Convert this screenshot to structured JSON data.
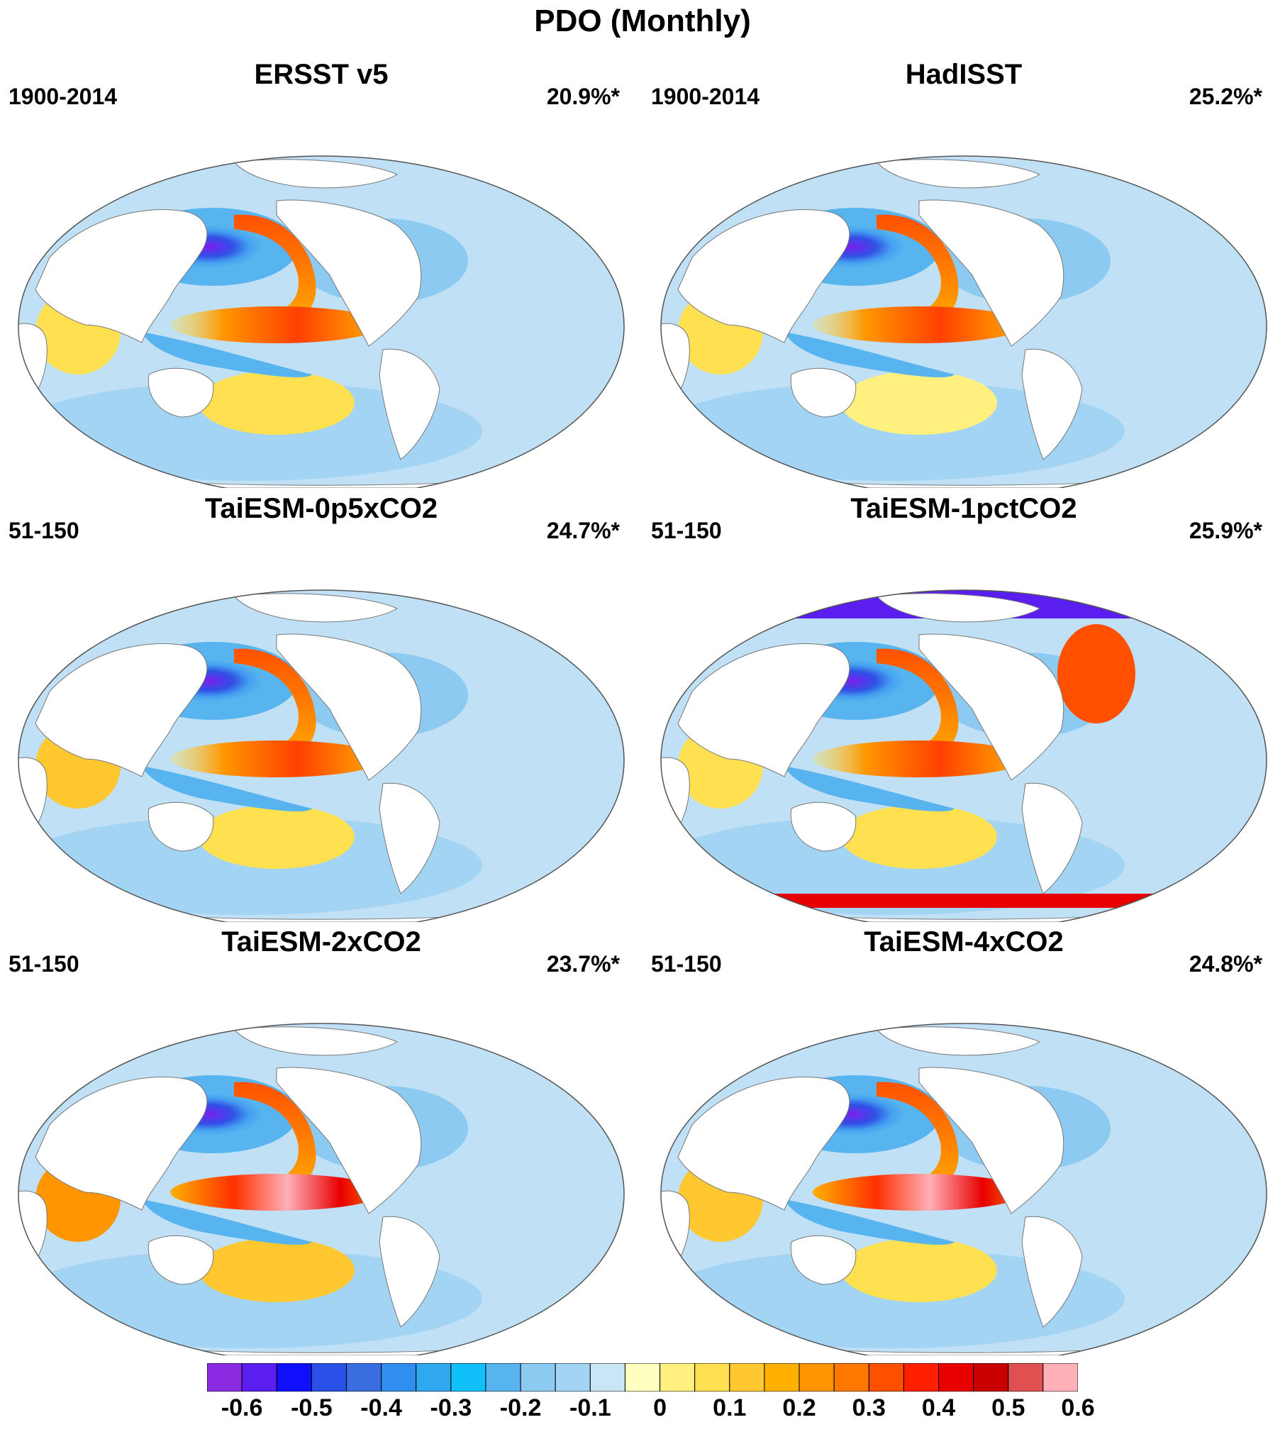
{
  "title": "PDO (Monthly)",
  "panels": [
    {
      "title": "ERSST v5",
      "period": "1900-2014",
      "variance": "20.9%*"
    },
    {
      "title": "HadISST",
      "period": "1900-2014",
      "variance": "25.2%*"
    },
    {
      "title": "TaiESM-0p5xCO2",
      "period": "51-150",
      "variance": "24.7%*"
    },
    {
      "title": "TaiESM-1pctCO2",
      "period": "51-150",
      "variance": "25.9%*"
    },
    {
      "title": "TaiESM-2xCO2",
      "period": "51-150",
      "variance": "23.7%*"
    },
    {
      "title": "TaiESM-4xCO2",
      "period": "51-150",
      "variance": "24.8%*"
    }
  ],
  "colorbar": {
    "colors": [
      "#8a2be2",
      "#5a1ef0",
      "#1010ff",
      "#2a50e8",
      "#3a6ee0",
      "#2f8ef0",
      "#30a8f0",
      "#10c0f8",
      "#58b4ee",
      "#8ccaf2",
      "#a4d4f4",
      "#c8e6f6",
      "#ffffc0",
      "#fff080",
      "#ffe050",
      "#ffc830",
      "#ffb000",
      "#ff9600",
      "#ff7800",
      "#ff5000",
      "#ff2000",
      "#e80000",
      "#c80000",
      "#e05050",
      "#ffb0b8"
    ],
    "labels": [
      "-0.6",
      "-0.5",
      "-0.4",
      "-0.3",
      "-0.2",
      "-0.1",
      "0",
      "0.1",
      "0.2",
      "0.3",
      "0.4",
      "0.5",
      "0.6"
    ]
  }
}
